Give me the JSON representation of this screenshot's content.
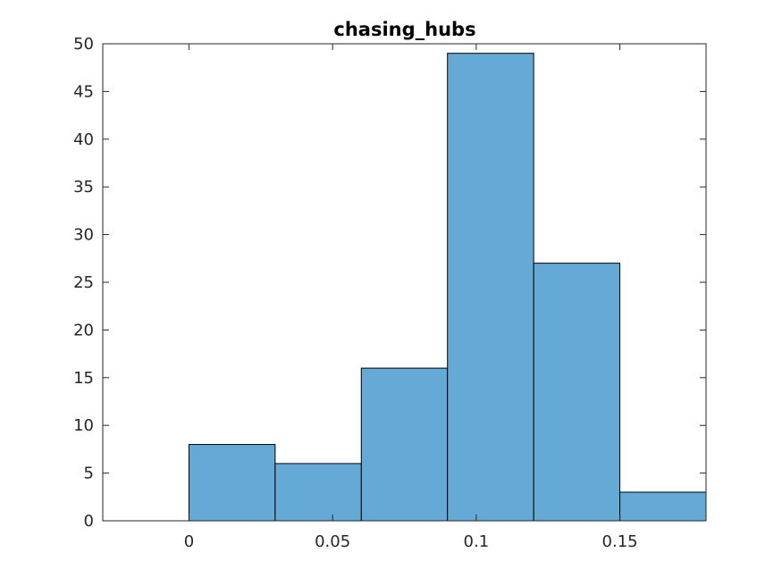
{
  "chart_data": {
    "type": "bar",
    "histogram": true,
    "title": "chasing_hubs",
    "xlabel": "",
    "ylabel": "",
    "bin_edges": [
      0,
      0.03,
      0.06,
      0.09,
      0.12,
      0.15,
      0.18
    ],
    "values": [
      8,
      6,
      16,
      49,
      27,
      3
    ],
    "xlim": [
      -0.03,
      0.18
    ],
    "ylim": [
      0,
      50
    ],
    "xticks": [
      0,
      0.05,
      0.1,
      0.15
    ],
    "xtick_labels": [
      "0",
      "0.05",
      "0.1",
      "0.15"
    ],
    "yticks": [
      0,
      5,
      10,
      15,
      20,
      25,
      30,
      35,
      40,
      45,
      50
    ],
    "ytick_labels": [
      "0",
      "5",
      "10",
      "15",
      "20",
      "25",
      "30",
      "35",
      "40",
      "45",
      "50"
    ],
    "grid": false,
    "legend": "none",
    "colors": {
      "bar_fill": "#65a9d7",
      "bar_edge": "#000000",
      "axes": "#262626",
      "background": "#ffffff"
    }
  }
}
